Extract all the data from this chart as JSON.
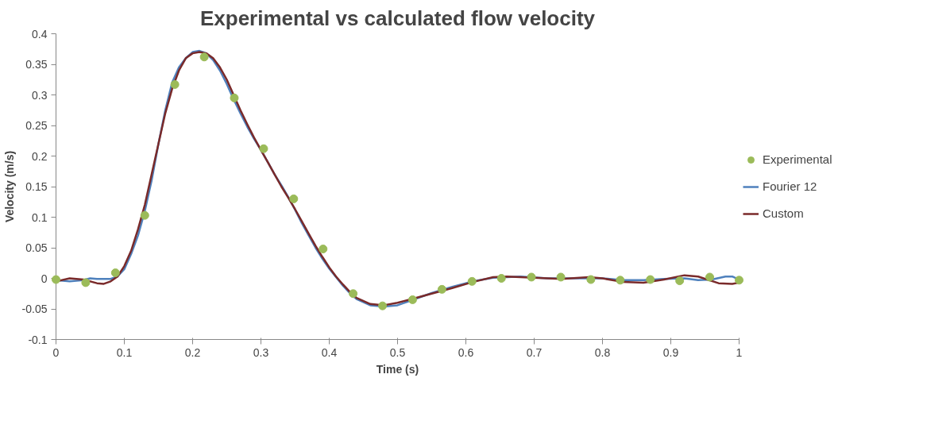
{
  "chart_data": {
    "type": "line",
    "title": "Experimental vs calculated flow velocity",
    "xlabel": "Time (s)",
    "ylabel": "Velocity (m/s)",
    "xlim": [
      0,
      1
    ],
    "xticks": [
      0,
      0.1,
      0.2,
      0.3,
      0.4,
      0.5,
      0.6,
      0.7,
      0.8,
      0.9,
      1
    ],
    "ylim": [
      -0.1,
      0.4
    ],
    "yticks": [
      -0.1,
      -0.05,
      0,
      0.05,
      0.1,
      0.15,
      0.2,
      0.25,
      0.3,
      0.35,
      0.4
    ],
    "grid": false,
    "legend": "right",
    "series": [
      {
        "name": "Experimental",
        "type": "scatter",
        "marker": "circle",
        "color": "#9bbb59",
        "x": [
          0,
          0.0435,
          0.087,
          0.13,
          0.174,
          0.217,
          0.261,
          0.304,
          0.348,
          0.391,
          0.435,
          0.478,
          0.522,
          0.565,
          0.609,
          0.652,
          0.696,
          0.739,
          0.783,
          0.826,
          0.87,
          0.913,
          0.957,
          1
        ],
        "values": [
          -0.002,
          -0.007,
          0.009,
          0.103,
          0.317,
          0.362,
          0.295,
          0.212,
          0.13,
          0.048,
          -0.025,
          -0.045,
          -0.035,
          -0.018,
          -0.005,
          0.0,
          0.002,
          0.002,
          -0.002,
          -0.003,
          -0.002,
          -0.004,
          0.002,
          -0.003
        ]
      },
      {
        "name": "Fourier 12",
        "line_style": "solid",
        "color": "#4f81bd",
        "x": [
          0,
          0.02,
          0.04,
          0.05,
          0.06,
          0.08,
          0.09,
          0.1,
          0.11,
          0.12,
          0.13,
          0.14,
          0.15,
          0.16,
          0.17,
          0.18,
          0.19,
          0.2,
          0.21,
          0.22,
          0.23,
          0.24,
          0.25,
          0.26,
          0.27,
          0.28,
          0.29,
          0.3,
          0.31,
          0.32,
          0.33,
          0.34,
          0.35,
          0.36,
          0.37,
          0.38,
          0.39,
          0.4,
          0.41,
          0.42,
          0.43,
          0.44,
          0.46,
          0.48,
          0.5,
          0.52,
          0.55,
          0.58,
          0.61,
          0.64,
          0.68,
          0.72,
          0.76,
          0.8,
          0.83,
          0.86,
          0.89,
          0.92,
          0.94,
          0.96,
          0.98,
          0.99,
          1
        ],
        "values": [
          -0.003,
          -0.005,
          -0.003,
          0.0,
          -0.001,
          -0.001,
          0.003,
          0.015,
          0.04,
          0.07,
          0.11,
          0.16,
          0.22,
          0.275,
          0.32,
          0.345,
          0.36,
          0.37,
          0.372,
          0.368,
          0.357,
          0.34,
          0.318,
          0.293,
          0.27,
          0.248,
          0.228,
          0.21,
          0.19,
          0.17,
          0.152,
          0.133,
          0.112,
          0.09,
          0.07,
          0.05,
          0.032,
          0.016,
          0.002,
          -0.012,
          -0.024,
          -0.034,
          -0.044,
          -0.046,
          -0.044,
          -0.036,
          -0.024,
          -0.014,
          -0.005,
          0.001,
          0.003,
          0.0,
          0.0,
          0.0,
          -0.003,
          -0.003,
          -0.001,
          0.0,
          -0.003,
          -0.002,
          0.003,
          0.003,
          -0.002
        ]
      },
      {
        "name": "Custom",
        "line_style": "solid",
        "color": "#7a2a2a",
        "x": [
          0,
          0.02,
          0.04,
          0.06,
          0.07,
          0.08,
          0.09,
          0.1,
          0.11,
          0.12,
          0.13,
          0.14,
          0.15,
          0.16,
          0.17,
          0.18,
          0.19,
          0.2,
          0.21,
          0.22,
          0.23,
          0.24,
          0.25,
          0.26,
          0.27,
          0.28,
          0.29,
          0.3,
          0.31,
          0.32,
          0.33,
          0.34,
          0.35,
          0.36,
          0.37,
          0.38,
          0.39,
          0.4,
          0.41,
          0.42,
          0.43,
          0.44,
          0.46,
          0.48,
          0.5,
          0.52,
          0.55,
          0.58,
          0.61,
          0.64,
          0.66,
          0.7,
          0.74,
          0.78,
          0.8,
          0.83,
          0.86,
          0.89,
          0.92,
          0.94,
          0.97,
          0.99,
          1
        ],
        "values": [
          -0.005,
          0.0,
          -0.002,
          -0.008,
          -0.009,
          -0.005,
          0.003,
          0.02,
          0.045,
          0.08,
          0.12,
          0.17,
          0.22,
          0.27,
          0.31,
          0.34,
          0.36,
          0.368,
          0.37,
          0.368,
          0.36,
          0.345,
          0.325,
          0.3,
          0.275,
          0.252,
          0.23,
          0.21,
          0.19,
          0.17,
          0.15,
          0.132,
          0.113,
          0.093,
          0.073,
          0.053,
          0.035,
          0.018,
          0.003,
          -0.01,
          -0.022,
          -0.032,
          -0.042,
          -0.044,
          -0.04,
          -0.034,
          -0.025,
          -0.016,
          -0.006,
          0.002,
          0.003,
          0.001,
          -0.001,
          0.002,
          0.0,
          -0.006,
          -0.007,
          -0.002,
          0.005,
          0.003,
          -0.008,
          -0.009,
          -0.007
        ]
      }
    ]
  }
}
